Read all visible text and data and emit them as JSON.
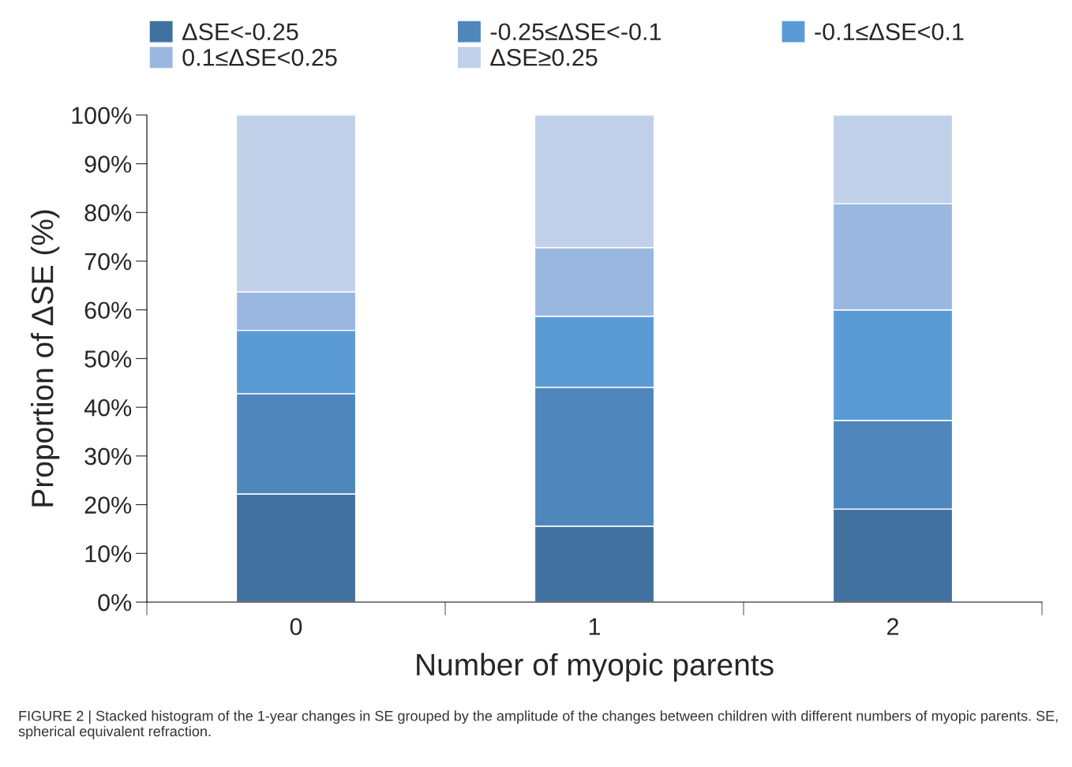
{
  "chart_data": {
    "type": "bar",
    "stacked": true,
    "xlabel": "Number of myopic parents",
    "ylabel": "Proportion of ΔSE (%)",
    "categories": [
      "0",
      "1",
      "2"
    ],
    "series": [
      {
        "name": "ΔSE<-0.25",
        "color": "#41729f",
        "values": [
          22.2,
          15.6,
          19.1
        ]
      },
      {
        "name": "-0.25≤ΔSE<-0.1",
        "color": "#4f87bd",
        "values": [
          20.6,
          28.5,
          18.2
        ]
      },
      {
        "name": "-0.1≤ΔSE<0.1",
        "color": "#5b9bd5",
        "values": [
          13.0,
          14.6,
          22.7
        ]
      },
      {
        "name": "0.1≤ΔSE<0.25",
        "color": "#9ab8df",
        "values": [
          7.9,
          14.1,
          21.8
        ]
      },
      {
        "name": "ΔSE≥0.25",
        "color": "#c0d1e9",
        "values": [
          36.3,
          27.2,
          18.2
        ]
      }
    ],
    "ylim": [
      0,
      100
    ],
    "yticks": [
      {
        "value": 0,
        "label": "0%"
      },
      {
        "value": 10,
        "label": "10%"
      },
      {
        "value": 20,
        "label": "20%"
      },
      {
        "value": 30,
        "label": "30%"
      },
      {
        "value": 40,
        "label": "40%"
      },
      {
        "value": 50,
        "label": "50%"
      },
      {
        "value": 60,
        "label": "60%"
      },
      {
        "value": 70,
        "label": "70%"
      },
      {
        "value": 80,
        "label": "80%"
      },
      {
        "value": 90,
        "label": "90%"
      },
      {
        "value": 100,
        "label": "100%"
      }
    ],
    "grid": false,
    "legend": "top",
    "annotations": [
      "FIGURE 2 | Stacked histogram of the 1-year changes in SE grouped by the amplitude of the changes between children with different numbers of myopic parents. SE, spherical equivalent refraction."
    ]
  }
}
